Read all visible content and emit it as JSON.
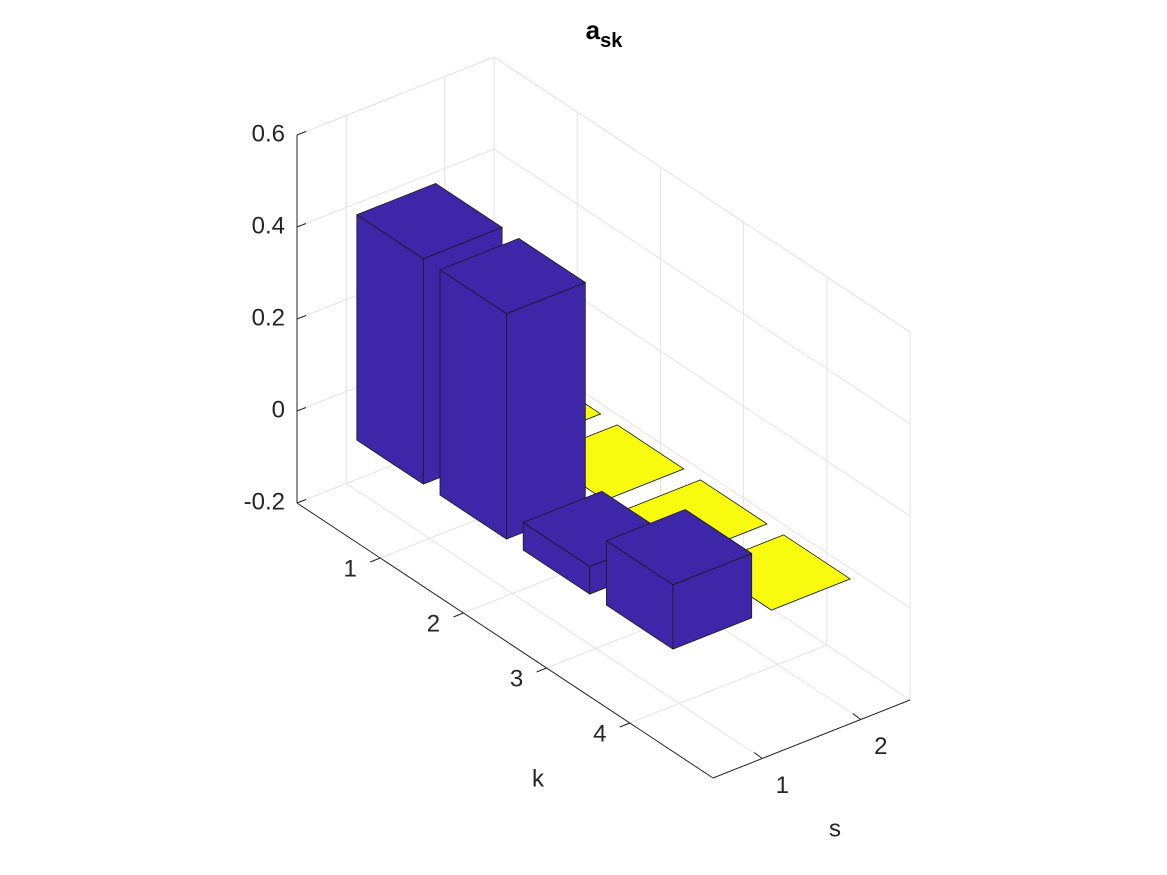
{
  "chart_data": {
    "type": "bar3",
    "title": "a",
    "title_subscript": "sk",
    "xlabel": "k",
    "ylabel": "s",
    "categories": [
      1,
      2,
      3,
      4
    ],
    "series": [
      {
        "s": 1,
        "color": "#3d26a8",
        "values": [
          0.49,
          0.49,
          0.06,
          0.14
        ]
      },
      {
        "s": 2,
        "color": "#f9fb0e",
        "values": [
          0,
          0,
          0,
          0
        ]
      }
    ],
    "klim": [
      0,
      5
    ],
    "kticks": [
      1,
      2,
      3,
      4
    ],
    "slim": [
      0.5,
      2.5
    ],
    "sticks": [
      1,
      2
    ],
    "zlim": [
      -0.2,
      0.6
    ],
    "zticks": [
      -0.2,
      0,
      0.2,
      0.4,
      0.6
    ],
    "grid": true
  }
}
